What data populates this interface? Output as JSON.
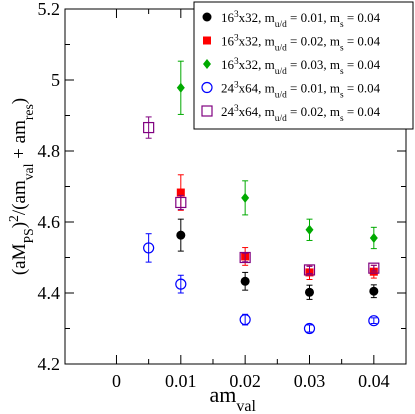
{
  "chart_data": {
    "type": "scatter",
    "xlabel": {
      "base": "am",
      "sub": "val"
    },
    "ylabel": {
      "parts": [
        [
          "(aM",
          ""
        ],
        [
          "PS",
          "sub"
        ],
        [
          ")",
          ""
        ],
        [
          "2",
          "sup"
        ],
        [
          "/(am",
          ""
        ],
        [
          "val",
          "sub"
        ],
        [
          " + am",
          ""
        ],
        [
          "res",
          "sub"
        ],
        [
          ")",
          ""
        ]
      ]
    },
    "xlim": [
      -0.008,
      0.045
    ],
    "ylim": [
      4.2,
      5.2
    ],
    "x_ticks": [
      0,
      0.01,
      0.02,
      0.03,
      0.04
    ],
    "x_tick_labels": [
      "0",
      "0.01",
      "0.02",
      "0.03",
      "0.04"
    ],
    "y_ticks": [
      4.2,
      4.4,
      4.6,
      4.8,
      5.0,
      5.2
    ],
    "y_tick_labels": [
      "4.2",
      "4.4",
      "4.6",
      "4.8",
      "5",
      "5.2"
    ],
    "legend_position": "top-right",
    "series": [
      {
        "legend_parts": [
          [
            "16",
            ""
          ],
          [
            "3",
            "sup"
          ],
          [
            "x32, m",
            ""
          ],
          [
            "u/d",
            "sub"
          ],
          [
            " = 0.01, m",
            ""
          ],
          [
            "s",
            "sub"
          ],
          [
            " = 0.04",
            ""
          ]
        ],
        "marker": "filled-circle",
        "color": "#000000",
        "points": [
          {
            "x": 0.01,
            "y": 4.563,
            "err": 0.045
          },
          {
            "x": 0.02,
            "y": 4.433,
            "err": 0.025
          },
          {
            "x": 0.03,
            "y": 4.402,
            "err": 0.02
          },
          {
            "x": 0.04,
            "y": 4.405,
            "err": 0.018
          }
        ]
      },
      {
        "legend_parts": [
          [
            "16",
            ""
          ],
          [
            "3",
            "sup"
          ],
          [
            "x32, m",
            ""
          ],
          [
            "u/d",
            "sub"
          ],
          [
            " = 0.02, m",
            ""
          ],
          [
            "s",
            "sub"
          ],
          [
            " = 0.04",
            ""
          ]
        ],
        "marker": "filled-square",
        "color": "#ff0000",
        "points": [
          {
            "x": 0.01,
            "y": 4.683,
            "err": 0.05
          },
          {
            "x": 0.02,
            "y": 4.503,
            "err": 0.025
          },
          {
            "x": 0.03,
            "y": 4.458,
            "err": 0.02
          },
          {
            "x": 0.04,
            "y": 4.46,
            "err": 0.018
          }
        ]
      },
      {
        "legend_parts": [
          [
            "16",
            ""
          ],
          [
            "3",
            "sup"
          ],
          [
            "x32, m",
            ""
          ],
          [
            "u/d",
            "sub"
          ],
          [
            " = 0.03, m",
            ""
          ],
          [
            "s",
            "sub"
          ],
          [
            " = 0.04",
            ""
          ]
        ],
        "marker": "filled-diamond",
        "color": "#00aa00",
        "points": [
          {
            "x": 0.01,
            "y": 4.978,
            "err": 0.075
          },
          {
            "x": 0.02,
            "y": 4.668,
            "err": 0.048
          },
          {
            "x": 0.03,
            "y": 4.578,
            "err": 0.03
          },
          {
            "x": 0.04,
            "y": 4.555,
            "err": 0.03
          }
        ]
      },
      {
        "legend_parts": [
          [
            "24",
            ""
          ],
          [
            "3",
            "sup"
          ],
          [
            "x64, m",
            ""
          ],
          [
            "u/d",
            "sub"
          ],
          [
            " = 0.01, m",
            ""
          ],
          [
            "s",
            "sub"
          ],
          [
            " = 0.04",
            ""
          ]
        ],
        "marker": "open-circle",
        "color": "#0000ff",
        "points": [
          {
            "x": 0.005,
            "y": 4.527,
            "err": 0.04
          },
          {
            "x": 0.01,
            "y": 4.425,
            "err": 0.025
          },
          {
            "x": 0.02,
            "y": 4.325,
            "err": 0.015
          },
          {
            "x": 0.03,
            "y": 4.3,
            "err": 0.01
          },
          {
            "x": 0.04,
            "y": 4.322,
            "err": 0.008
          }
        ]
      },
      {
        "legend_parts": [
          [
            "24",
            ""
          ],
          [
            "3",
            "sup"
          ],
          [
            "x64, m",
            ""
          ],
          [
            "u/d",
            "sub"
          ],
          [
            " = 0.02, m",
            ""
          ],
          [
            "s",
            "sub"
          ],
          [
            " = 0.04",
            ""
          ]
        ],
        "marker": "open-square",
        "color": "#800080",
        "points": [
          {
            "x": 0.005,
            "y": 4.866,
            "err": 0.03
          },
          {
            "x": 0.01,
            "y": 4.655,
            "err": 0.02
          },
          {
            "x": 0.02,
            "y": 4.5,
            "err": 0.012
          },
          {
            "x": 0.03,
            "y": 4.465,
            "err": 0.01
          },
          {
            "x": 0.04,
            "y": 4.47,
            "err": 0.008
          }
        ]
      }
    ]
  }
}
